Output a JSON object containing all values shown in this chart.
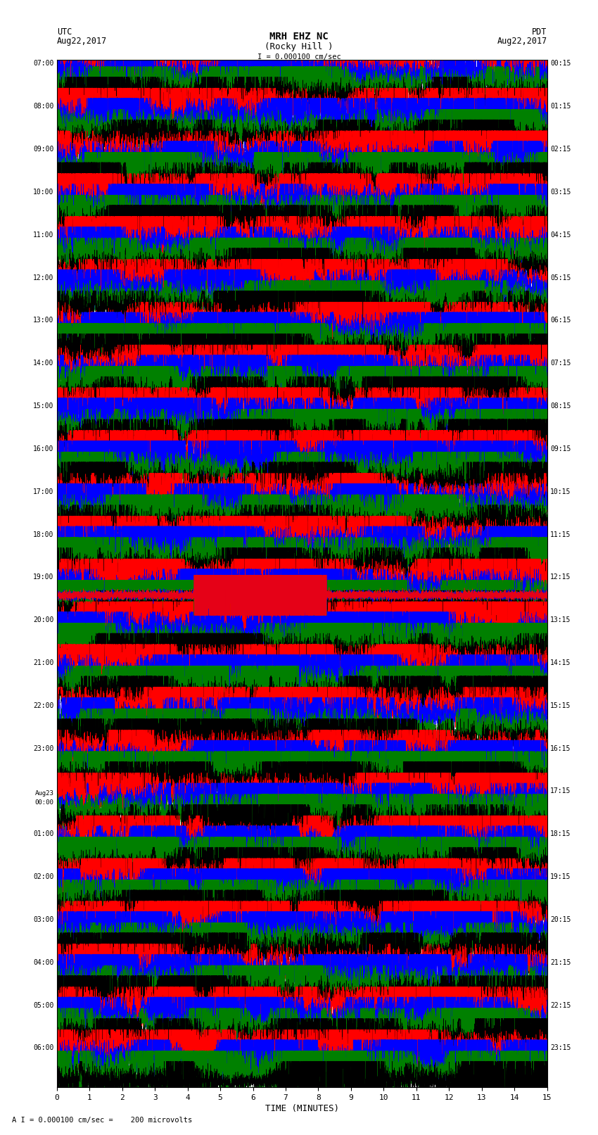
{
  "title_line1": "MRH EHZ NC",
  "title_line2": "(Rocky Hill )",
  "scale_text": "I = 0.000100 cm/sec",
  "footer_text": "A I = 0.000100 cm/sec =    200 microvolts",
  "xlabel": "TIME (MINUTES)",
  "utc_label": "UTC",
  "utc_date": "Aug22,2017",
  "pdt_label": "PDT",
  "pdt_date": "Aug22,2017",
  "left_times": [
    "07:00",
    "08:00",
    "09:00",
    "10:00",
    "11:00",
    "12:00",
    "13:00",
    "14:00",
    "15:00",
    "16:00",
    "17:00",
    "18:00",
    "19:00",
    "20:00",
    "21:00",
    "22:00",
    "23:00",
    "Aug23\n00:00",
    "01:00",
    "02:00",
    "03:00",
    "04:00",
    "05:00",
    "06:00"
  ],
  "right_times": [
    "00:15",
    "01:15",
    "02:15",
    "03:15",
    "04:15",
    "05:15",
    "06:15",
    "07:15",
    "08:15",
    "09:15",
    "10:15",
    "11:15",
    "12:15",
    "13:15",
    "14:15",
    "15:15",
    "16:15",
    "17:15",
    "18:15",
    "19:15",
    "20:15",
    "21:15",
    "22:15",
    "23:15"
  ],
  "n_rows": 24,
  "n_minutes": 15,
  "colors": [
    "red",
    "blue",
    "green",
    "black"
  ],
  "bg_color": "white",
  "plot_bg": "white",
  "seed": 42,
  "fig_width": 8.5,
  "fig_height": 16.13,
  "dpi": 100
}
